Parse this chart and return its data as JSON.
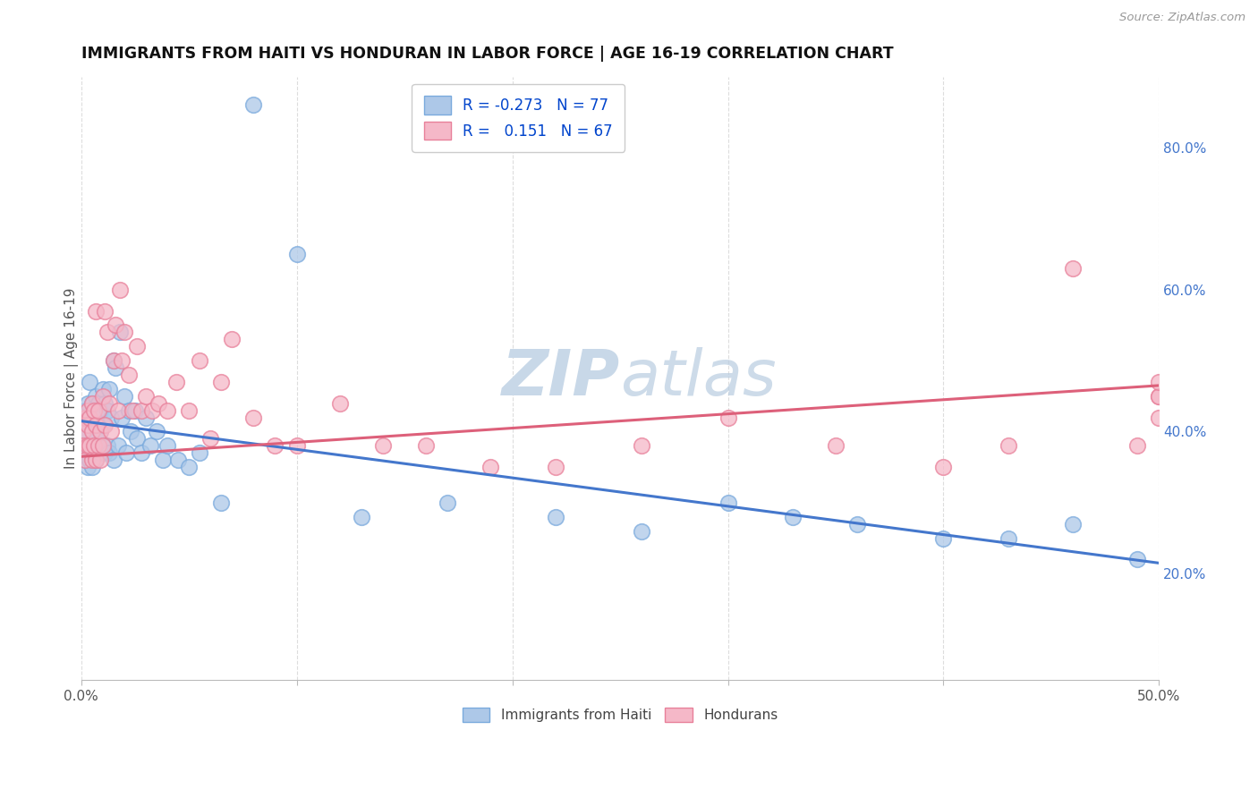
{
  "title": "IMMIGRANTS FROM HAITI VS HONDURAN IN LABOR FORCE | AGE 16-19 CORRELATION CHART",
  "source": "Source: ZipAtlas.com",
  "ylabel": "In Labor Force | Age 16-19",
  "xlim": [
    0.0,
    0.5
  ],
  "ylim": [
    0.05,
    0.9
  ],
  "yticks_right": [
    0.2,
    0.4,
    0.6,
    0.8
  ],
  "yticklabels_right": [
    "20.0%",
    "40.0%",
    "60.0%",
    "80.0%"
  ],
  "haiti_color": "#adc8e8",
  "honduran_color": "#f5b8c8",
  "haiti_edge_color": "#7aaadd",
  "honduran_edge_color": "#e8809a",
  "haiti_line_color": "#4477cc",
  "honduran_line_color": "#dd607a",
  "haiti_R": -0.273,
  "haiti_N": 77,
  "honduran_R": 0.151,
  "honduran_N": 67,
  "watermark_color": "#c8d8e8",
  "haiti_line_y0": 0.415,
  "haiti_line_y1": 0.215,
  "honduran_line_y0": 0.365,
  "honduran_line_y1": 0.465,
  "haiti_x": [
    0.001,
    0.001,
    0.001,
    0.002,
    0.002,
    0.002,
    0.002,
    0.003,
    0.003,
    0.003,
    0.003,
    0.004,
    0.004,
    0.004,
    0.004,
    0.005,
    0.005,
    0.005,
    0.005,
    0.006,
    0.006,
    0.006,
    0.007,
    0.007,
    0.007,
    0.007,
    0.008,
    0.008,
    0.008,
    0.009,
    0.009,
    0.009,
    0.01,
    0.01,
    0.01,
    0.011,
    0.011,
    0.012,
    0.012,
    0.013,
    0.013,
    0.014,
    0.015,
    0.015,
    0.016,
    0.017,
    0.018,
    0.019,
    0.02,
    0.021,
    0.022,
    0.023,
    0.025,
    0.026,
    0.028,
    0.03,
    0.032,
    0.035,
    0.038,
    0.04,
    0.045,
    0.05,
    0.055,
    0.065,
    0.08,
    0.1,
    0.13,
    0.17,
    0.22,
    0.26,
    0.3,
    0.33,
    0.36,
    0.4,
    0.43,
    0.46,
    0.49
  ],
  "haiti_y": [
    0.4,
    0.38,
    0.42,
    0.38,
    0.43,
    0.36,
    0.4,
    0.42,
    0.35,
    0.44,
    0.38,
    0.47,
    0.36,
    0.41,
    0.38,
    0.44,
    0.37,
    0.35,
    0.4,
    0.43,
    0.38,
    0.42,
    0.39,
    0.45,
    0.38,
    0.36,
    0.44,
    0.38,
    0.41,
    0.37,
    0.43,
    0.4,
    0.46,
    0.38,
    0.41,
    0.44,
    0.37,
    0.43,
    0.38,
    0.46,
    0.37,
    0.42,
    0.5,
    0.36,
    0.49,
    0.38,
    0.54,
    0.42,
    0.45,
    0.37,
    0.43,
    0.4,
    0.43,
    0.39,
    0.37,
    0.42,
    0.38,
    0.4,
    0.36,
    0.38,
    0.36,
    0.35,
    0.37,
    0.3,
    0.86,
    0.65,
    0.28,
    0.3,
    0.28,
    0.26,
    0.3,
    0.28,
    0.27,
    0.25,
    0.25,
    0.27,
    0.22
  ],
  "honduran_x": [
    0.001,
    0.001,
    0.002,
    0.002,
    0.003,
    0.003,
    0.003,
    0.004,
    0.004,
    0.005,
    0.005,
    0.005,
    0.006,
    0.006,
    0.007,
    0.007,
    0.007,
    0.008,
    0.008,
    0.009,
    0.009,
    0.01,
    0.01,
    0.011,
    0.011,
    0.012,
    0.013,
    0.014,
    0.015,
    0.016,
    0.017,
    0.018,
    0.019,
    0.02,
    0.022,
    0.024,
    0.026,
    0.028,
    0.03,
    0.033,
    0.036,
    0.04,
    0.044,
    0.05,
    0.055,
    0.06,
    0.065,
    0.07,
    0.08,
    0.09,
    0.1,
    0.12,
    0.14,
    0.16,
    0.19,
    0.22,
    0.26,
    0.3,
    0.35,
    0.4,
    0.43,
    0.46,
    0.49,
    0.5,
    0.5,
    0.5,
    0.5
  ],
  "honduran_y": [
    0.4,
    0.38,
    0.42,
    0.36,
    0.43,
    0.38,
    0.41,
    0.38,
    0.42,
    0.4,
    0.44,
    0.36,
    0.38,
    0.43,
    0.57,
    0.41,
    0.36,
    0.38,
    0.43,
    0.4,
    0.36,
    0.45,
    0.38,
    0.57,
    0.41,
    0.54,
    0.44,
    0.4,
    0.5,
    0.55,
    0.43,
    0.6,
    0.5,
    0.54,
    0.48,
    0.43,
    0.52,
    0.43,
    0.45,
    0.43,
    0.44,
    0.43,
    0.47,
    0.43,
    0.5,
    0.39,
    0.47,
    0.53,
    0.42,
    0.38,
    0.38,
    0.44,
    0.38,
    0.38,
    0.35,
    0.35,
    0.38,
    0.42,
    0.38,
    0.35,
    0.38,
    0.63,
    0.38,
    0.45,
    0.42,
    0.45,
    0.47
  ]
}
